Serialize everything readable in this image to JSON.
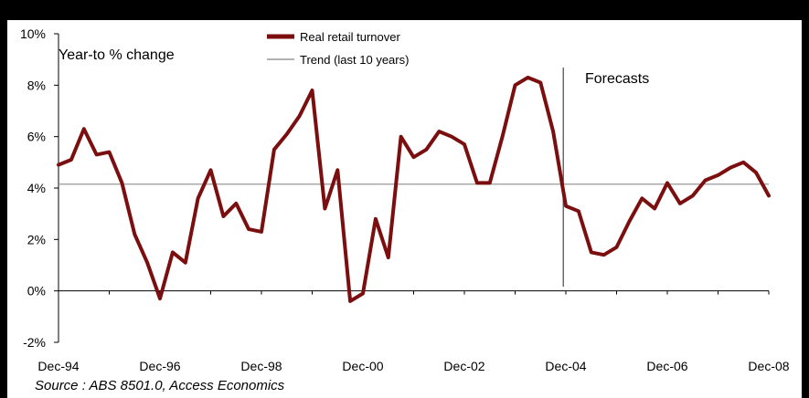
{
  "chart_data": {
    "type": "line",
    "annotation_left": "Year-to % change",
    "annotation_forecast": "Forecasts",
    "source": "Source : ABS 8501.0, Access Economics",
    "legend": [
      {
        "label": "Real retail turnover",
        "color": "#7B0F0F"
      },
      {
        "label": "Trend (last 10 years)",
        "color": "#999999"
      }
    ],
    "legend_position": "top-center",
    "x_tick_labels": [
      "Dec-94",
      "Dec-96",
      "Dec-98",
      "Dec-00",
      "Dec-02",
      "Dec-04",
      "Dec-06",
      "Dec-08"
    ],
    "y_tick_labels": [
      "-2%",
      "0%",
      "2%",
      "4%",
      "6%",
      "8%",
      "10%"
    ],
    "ylim": [
      -2,
      10
    ],
    "y_ticks": [
      -2,
      0,
      2,
      4,
      6,
      8,
      10
    ],
    "trend_value": 4.15,
    "forecast_start_index": 40,
    "series": [
      {
        "name": "Real retail turnover",
        "color": "#7B0F0F",
        "values": [
          4.9,
          5.1,
          6.3,
          5.3,
          5.4,
          4.2,
          2.2,
          1.1,
          -0.3,
          1.5,
          1.1,
          3.6,
          4.7,
          2.9,
          3.4,
          2.4,
          2.3,
          5.5,
          6.1,
          6.8,
          7.8,
          3.2,
          4.7,
          -0.4,
          -0.1,
          2.8,
          1.3,
          6.0,
          5.2,
          5.5,
          6.2,
          6.0,
          5.7,
          4.2,
          4.2,
          6.0,
          8.0,
          8.3,
          8.1,
          6.2,
          3.3,
          3.1,
          1.5,
          1.4,
          1.7,
          2.7,
          3.6,
          3.2,
          4.2,
          3.4,
          3.7,
          4.3,
          4.5,
          4.8,
          5.0,
          4.6,
          3.7
        ]
      }
    ]
  }
}
